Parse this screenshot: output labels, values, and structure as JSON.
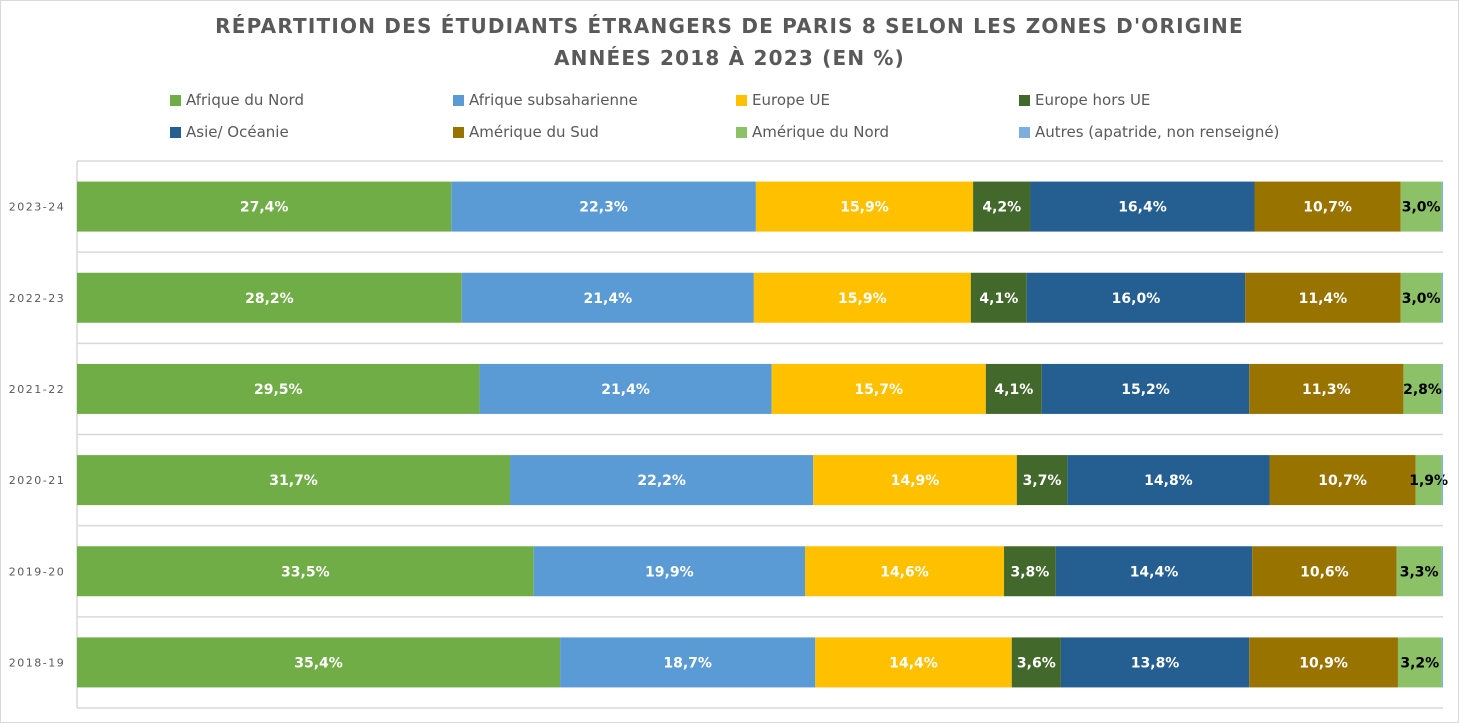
{
  "chart_data": {
    "type": "bar",
    "orientation": "horizontal",
    "stacked": "percent",
    "title": "RÉPARTITION DES ÉTUDIANTS ÉTRANGERS DE PARIS 8 SELON LES ZONES D'ORIGINE",
    "subtitle": "ANNÉES 2018 À 2023 (EN %)",
    "xlabel": "",
    "ylabel": "",
    "xlim": [
      0,
      100
    ],
    "grid": true,
    "legend_position": "top",
    "categories": [
      "2023-24",
      "2022-23",
      "2021-22",
      "2020-21",
      "2019-20",
      "2018-19"
    ],
    "series": [
      {
        "name": "Afrique du Nord",
        "color": "#70ad47",
        "label_color": "#ffffff",
        "values": [
          27.4,
          28.2,
          29.5,
          31.7,
          33.5,
          35.4
        ],
        "labels": [
          "27,4%",
          "28,2%",
          "29,5%",
          "31,7%",
          "33,5%",
          "35,4%"
        ]
      },
      {
        "name": "Afrique subsaharienne",
        "color": "#5b9bd5",
        "label_color": "#ffffff",
        "values": [
          22.3,
          21.4,
          21.4,
          22.2,
          19.9,
          18.7
        ],
        "labels": [
          "22,3%",
          "21,4%",
          "21,4%",
          "22,2%",
          "19,9%",
          "18,7%"
        ]
      },
      {
        "name": "Europe UE",
        "color": "#ffc000",
        "label_color": "#ffffff",
        "values": [
          15.9,
          15.9,
          15.7,
          14.9,
          14.6,
          14.4
        ],
        "labels": [
          "15,9%",
          "15,9%",
          "15,7%",
          "14,9%",
          "14,6%",
          "14,4%"
        ]
      },
      {
        "name": "Europe hors UE",
        "color": "#43682b",
        "label_color": "#ffffff",
        "values": [
          4.2,
          4.1,
          4.1,
          3.7,
          3.8,
          3.6
        ],
        "labels": [
          "4,2%",
          "4,1%",
          "4,1%",
          "3,7%",
          "3,8%",
          "3,6%"
        ]
      },
      {
        "name": "Asie/ Océanie",
        "color": "#255e91",
        "label_color": "#ffffff",
        "values": [
          16.4,
          16.0,
          15.2,
          14.8,
          14.4,
          13.8
        ],
        "labels": [
          "16,4%",
          "16,0%",
          "15,2%",
          "14,8%",
          "14,4%",
          "13,8%"
        ]
      },
      {
        "name": "Amérique du Sud",
        "color": "#997300",
        "label_color": "#ffffff",
        "values": [
          10.7,
          11.4,
          11.3,
          10.7,
          10.6,
          10.9
        ],
        "labels": [
          "10,7%",
          "11,4%",
          "11,3%",
          "10,7%",
          "10,6%",
          "10,9%"
        ]
      },
      {
        "name": "Amérique du Nord",
        "color": "#8cc168",
        "label_color": "#000000",
        "values": [
          3.0,
          3.0,
          2.8,
          1.9,
          3.3,
          3.2
        ],
        "labels": [
          "3,0%",
          "3,0%",
          "2,8%",
          "1,9%",
          "3,3%",
          "3,2%"
        ]
      },
      {
        "name": "Autres (apatride, non renseigné)",
        "color": "#7cafdd",
        "label_color": "#000000",
        "values": [
          0.1,
          0.1,
          0.1,
          0.1,
          0.1,
          0.1
        ],
        "labels": [
          "",
          "",
          "",
          "",
          "",
          ""
        ]
      }
    ]
  }
}
